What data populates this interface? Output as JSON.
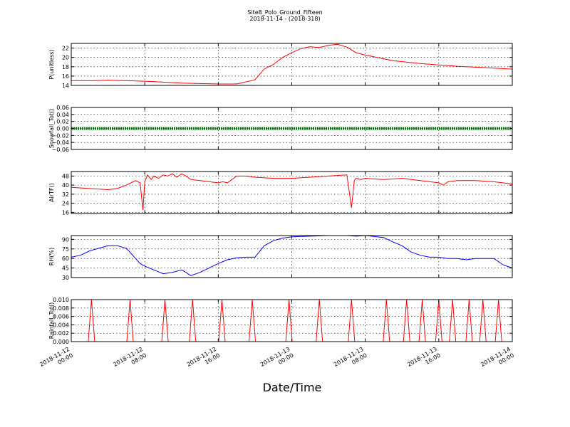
{
  "chart_data": {
    "type": "line",
    "title": "Site8_Polo_Ground_Fifteen",
    "subtitle": "2018-11-14 - (2018-318)",
    "xlabel": "Date/Time",
    "x_ticks": [
      "2018-11-12\n00:00",
      "2018-11-12\n08:00",
      "2018-11-12\n16:00",
      "2018-11-13\n00:00",
      "2018-11-13\n08:00",
      "2018-11-13\n16:00",
      "2018-11-14\n00:00"
    ],
    "x_range_hours": [
      0,
      48
    ],
    "grid": true,
    "panels": [
      {
        "ylabel": "P(unitless)",
        "color": "#ff0000",
        "ylim": [
          14,
          23
        ],
        "yticks": [
          "14",
          "16",
          "18",
          "20",
          "22"
        ],
        "ytick_values": [
          14,
          16,
          18,
          20,
          22
        ],
        "x": [
          0,
          2,
          4,
          6,
          8,
          10,
          12,
          14,
          16,
          18,
          20,
          21,
          22,
          23,
          24,
          25,
          26,
          27,
          28,
          29,
          30,
          31,
          32,
          33,
          34,
          35,
          36,
          38,
          40,
          42,
          44,
          46,
          48
        ],
        "y": [
          15,
          15,
          15.1,
          15,
          14.9,
          14.7,
          14.5,
          14.4,
          14.3,
          14.3,
          15.2,
          17.5,
          18.5,
          20,
          21,
          21.9,
          22.3,
          22.1,
          22.6,
          22.8,
          22.2,
          21,
          20.5,
          20.1,
          19.7,
          19.3,
          19.1,
          18.7,
          18.4,
          18.1,
          17.9,
          17.7,
          17.5
        ]
      },
      {
        "ylabel": "Snowfall_Tot()",
        "color": "#008000",
        "ylim": [
          -0.06,
          0.06
        ],
        "yticks": [
          "−0.06",
          "−0.04",
          "−0.02",
          "0.00",
          "0.02",
          "0.04",
          "0.06"
        ],
        "ytick_values": [
          -0.06,
          -0.04,
          -0.02,
          0,
          0.02,
          0.04,
          0.06
        ],
        "x": [
          0,
          48
        ],
        "y": [
          0,
          0
        ]
      },
      {
        "ylabel": "AirTF()",
        "color": "#ff0000",
        "ylim": [
          15,
          52
        ],
        "yticks": [
          "16",
          "24",
          "32",
          "40",
          "48"
        ],
        "ytick_values": [
          16,
          24,
          32,
          40,
          48
        ],
        "x": [
          0,
          2,
          4,
          5,
          6,
          7,
          7.5,
          7.8,
          8,
          8.3,
          8.7,
          9,
          9.5,
          10,
          10.5,
          11,
          11.5,
          12,
          12.5,
          13,
          14,
          15,
          16,
          16.5,
          17,
          18,
          19,
          20,
          22,
          24,
          26,
          28,
          30,
          30.5,
          30.8,
          31,
          31.5,
          32,
          34,
          36,
          38,
          40,
          40.5,
          41,
          42,
          44,
          46,
          48
        ],
        "y": [
          38,
          37,
          36,
          37,
          40,
          44,
          42,
          18,
          43,
          49,
          45,
          48,
          46,
          49,
          48,
          50,
          47,
          50,
          48,
          45,
          44,
          43,
          42,
          43,
          42,
          48,
          48,
          47,
          46,
          46,
          47,
          48,
          49,
          20,
          44,
          46,
          45,
          46,
          45,
          46,
          44,
          42,
          40,
          43,
          44,
          44,
          43,
          41
        ]
      },
      {
        "ylabel": "RH(%)",
        "color": "#0000ff",
        "ylim": [
          30,
          96
        ],
        "yticks": [
          "30",
          "45",
          "60",
          "75",
          "90"
        ],
        "ytick_values": [
          30,
          45,
          60,
          75,
          90
        ],
        "x": [
          0,
          1,
          2,
          3,
          4,
          5,
          6,
          7,
          7.5,
          8,
          9,
          10,
          11,
          12,
          12.5,
          13,
          14,
          15,
          16,
          17,
          18,
          19,
          20,
          21,
          22,
          23,
          24,
          26,
          28,
          30,
          31,
          32,
          34,
          35,
          36,
          37,
          38,
          39,
          40,
          41,
          42,
          43,
          44,
          45,
          46,
          47,
          48
        ],
        "y": [
          62,
          65,
          72,
          76,
          80,
          80,
          76,
          60,
          52,
          48,
          42,
          36,
          38,
          42,
          38,
          33,
          38,
          45,
          52,
          58,
          61,
          62,
          62,
          80,
          88,
          92,
          94,
          95,
          96,
          96,
          95,
          96,
          93,
          86,
          80,
          70,
          65,
          62,
          62,
          60,
          60,
          58,
          60,
          60,
          60,
          50,
          45
        ]
      },
      {
        "ylabel": "Rainfall_Tot()",
        "color": "#ff0000",
        "ylim": [
          0,
          0.01
        ],
        "yticks": [
          "0.000",
          "0.002",
          "0.004",
          "0.006",
          "0.008",
          "0.010"
        ],
        "ytick_values": [
          0,
          0.002,
          0.004,
          0.006,
          0.008,
          0.01
        ],
        "spikes_x": [
          2.2,
          6.4,
          10.2,
          13.2,
          16.4,
          19.7,
          23.7,
          27,
          30.5,
          34.3,
          36.5,
          38.2,
          40,
          41.5,
          43.3,
          44.8,
          46.5
        ],
        "spike_value": 0.01
      }
    ]
  }
}
